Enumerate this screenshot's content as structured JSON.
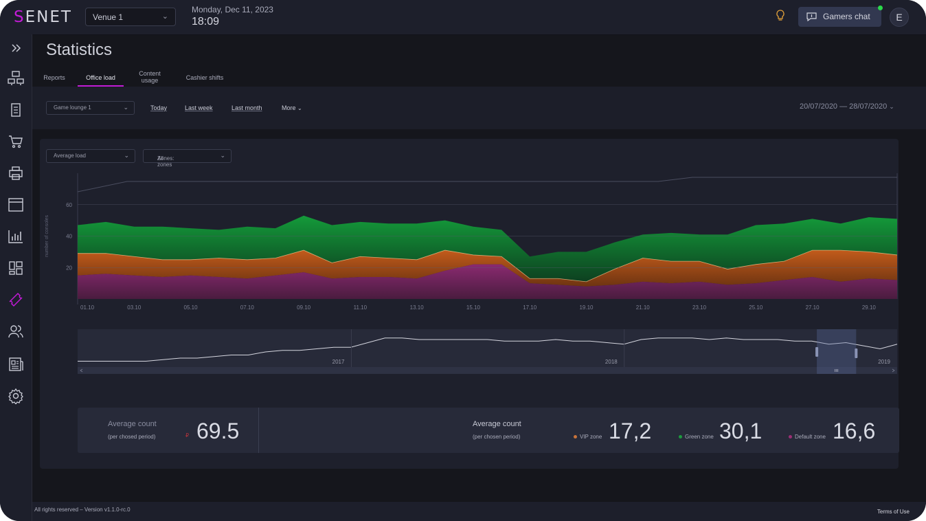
{
  "app": {
    "logo_rest": "ENET",
    "logo_first": "S"
  },
  "header": {
    "venue": "Venue 1",
    "date": "Monday, Dec 11, 2023",
    "time": "18:09",
    "chat_label": "Gamers chat",
    "avatar_initial": "E"
  },
  "page": {
    "title": "Statistics"
  },
  "tabs": [
    {
      "label": "Reports"
    },
    {
      "label": "Office load",
      "active": true
    },
    {
      "label": "Content usage"
    },
    {
      "label": "Cashier shifts"
    }
  ],
  "filters": {
    "location": "Game lounge 1",
    "today": "Today",
    "last_week": "Last week",
    "last_month": "Last month",
    "more": "More",
    "date_range": "20/07/2020 — 28/07/2020"
  },
  "chart_controls": {
    "metric": "Average load",
    "zones_prefix": "Zones:",
    "zones_value": "All zones"
  },
  "chart_data": {
    "type": "area",
    "ylabel": "number of consoles",
    "yticks": [
      20,
      40,
      60
    ],
    "ylim": [
      0,
      80
    ],
    "categories": [
      "01.10",
      "02.10",
      "03.10",
      "04.10",
      "05.10",
      "06.10",
      "07.10",
      "08.10",
      "09.10",
      "10.10",
      "11.10",
      "12.10",
      "13.10",
      "14.10",
      "15.10",
      "16.10",
      "17.10",
      "18.10",
      "19.10",
      "20.10",
      "21.10",
      "22.10",
      "23.10",
      "24.10",
      "25.10",
      "26.10",
      "27.10",
      "28.10",
      "29.10",
      "30.10"
    ],
    "tick_labels": [
      "01.10",
      "03.10",
      "05.10",
      "07.10",
      "09.10",
      "11.10",
      "13.10",
      "15.10",
      "17.10",
      "19.10",
      "21.10",
      "23.10",
      "25.10",
      "27.10",
      "29.10"
    ],
    "series": [
      {
        "name": "Default zone",
        "color": "#7d2a66",
        "values": [
          15,
          16,
          15,
          14,
          15,
          14,
          13,
          15,
          17,
          13,
          14,
          14,
          13,
          18,
          22,
          22,
          10,
          9,
          8,
          9,
          11,
          10,
          11,
          9,
          10,
          12,
          14,
          11,
          13,
          12
        ]
      },
      {
        "name": "VIP zone",
        "color": "#c25b1b",
        "values": [
          14,
          13,
          12,
          11,
          10,
          12,
          12,
          11,
          14,
          10,
          13,
          12,
          12,
          13,
          6,
          5,
          3,
          4,
          3,
          10,
          15,
          14,
          13,
          10,
          12,
          12,
          17,
          20,
          17,
          16
        ]
      },
      {
        "name": "Green zone",
        "color": "#149a3a",
        "values": [
          18,
          20,
          19,
          21,
          20,
          18,
          21,
          19,
          22,
          24,
          22,
          22,
          23,
          19,
          18,
          17,
          14,
          17,
          19,
          17,
          15,
          18,
          17,
          22,
          25,
          24,
          20,
          17,
          22,
          23
        ]
      }
    ],
    "overview": {
      "year_labels": [
        "2017",
        "2018",
        "2019"
      ],
      "values": [
        2,
        2,
        2,
        2,
        2,
        3,
        4,
        4,
        5,
        6,
        6,
        8,
        9,
        9,
        10,
        11,
        11,
        14,
        17,
        17,
        16,
        16,
        16,
        16,
        16,
        15,
        15,
        15,
        16,
        15,
        15,
        14,
        13,
        16,
        17,
        17,
        17,
        16,
        17,
        16,
        16,
        16,
        15,
        15,
        13,
        14,
        12,
        10,
        13
      ]
    }
  },
  "stats": {
    "total_label": "Average count",
    "total_sub": "(per chosed period)",
    "total_icon_text": "₽",
    "total_value": "69.5",
    "zones_label": "Average count",
    "zones_sub": "(per chosen period)",
    "vip_label": "VIP zone",
    "vip_value": "17,2",
    "green_label": "Green zone",
    "green_value": "30,1",
    "default_label": "Default zone",
    "default_value": "16,6",
    "colors": {
      "vip": "#c9733a",
      "green": "#1d9a3e",
      "default": "#9b2f74"
    }
  },
  "footer": {
    "rights": "All rights reserved – Version v1.1.0-rc.0",
    "terms": "Terms of Use"
  },
  "sidebar_icons": [
    "expand-icon",
    "stations-icon",
    "tablet-icon",
    "cart-icon",
    "printer-icon",
    "browser-window-icon",
    "bar-chart-icon",
    "dashboard-icon",
    "ticket-icon",
    "users-icon",
    "news-icon",
    "settings-icon"
  ]
}
